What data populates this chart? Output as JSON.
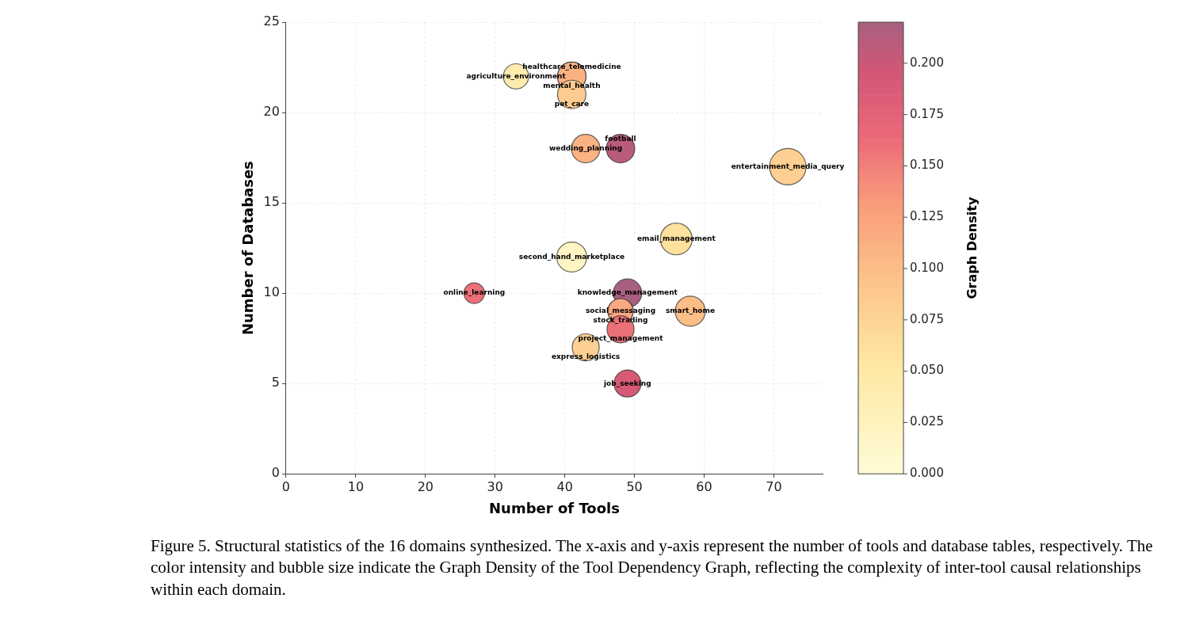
{
  "chart_data": {
    "type": "bubble",
    "xlabel": "Number of Tools",
    "ylabel": "Number of Databases",
    "clabel": "Graph Density",
    "xlim": [
      0,
      77
    ],
    "xticks": [
      0,
      10,
      20,
      30,
      40,
      50,
      60,
      70
    ],
    "ylim": [
      0,
      25
    ],
    "yticks": [
      0,
      5,
      10,
      15,
      20,
      25
    ],
    "clim": [
      0,
      0.22
    ],
    "cticks": [
      {
        "value": 0,
        "label": "0.000"
      },
      {
        "value": 0.025,
        "label": "0.025"
      },
      {
        "value": 0.05,
        "label": "0.050"
      },
      {
        "value": 0.075,
        "label": "0.075"
      },
      {
        "value": 0.1,
        "label": "0.100"
      },
      {
        "value": 0.125,
        "label": "0.125"
      },
      {
        "value": 0.15,
        "label": "0.150"
      },
      {
        "value": 0.175,
        "label": "0.175"
      },
      {
        "value": 0.2,
        "label": "0.200"
      }
    ],
    "grid": true,
    "x": [
      33,
      41,
      41,
      41,
      43,
      48,
      72,
      56,
      41,
      27,
      49,
      48,
      48,
      58,
      48,
      43,
      49
    ],
    "values": [
      22,
      22,
      22,
      21,
      18,
      18,
      17,
      13,
      12,
      10,
      10,
      9,
      9,
      9,
      8,
      7,
      5
    ],
    "sizes": [
      0.48,
      0.61,
      0.61,
      0.61,
      0.61,
      0.61,
      1,
      0.76,
      0.68,
      0.32,
      0.61,
      0.48,
      0.48,
      0.68,
      0.55,
      0.55,
      0.55
    ],
    "cvalues": [
      0.04,
      0.11,
      0.11,
      0.085,
      0.11,
      0.21,
      0.08,
      0.06,
      0.02,
      0.16,
      0.22,
      0.13,
      0.12,
      0.1,
      0.16,
      0.08,
      0.19
    ],
    "annotations": [
      {
        "text": "agriculture_environment",
        "x": 33,
        "y": 22
      },
      {
        "text": "healthcare_telemedicine",
        "x": 41,
        "y": 22
      },
      {
        "text": "mental_health",
        "x": 41,
        "y": 22
      },
      {
        "text": "pet_care",
        "x": 41,
        "y": 21
      },
      {
        "text": "wedding_planning",
        "x": 43,
        "y": 18
      },
      {
        "text": "football",
        "x": 48,
        "y": 18
      },
      {
        "text": "entertainment_media_query",
        "x": 72,
        "y": 17
      },
      {
        "text": "email_management",
        "x": 56,
        "y": 13
      },
      {
        "text": "second_hand_marketplace",
        "x": 41,
        "y": 12
      },
      {
        "text": "online_learning",
        "x": 27,
        "y": 10
      },
      {
        "text": "knowledge_management",
        "x": 49,
        "y": 10
      },
      {
        "text": "social_messaging",
        "x": 48,
        "y": 9
      },
      {
        "text": "stock_trading",
        "x": 48,
        "y": 9
      },
      {
        "text": "smart_home",
        "x": 58,
        "y": 9
      },
      {
        "text": "project_management",
        "x": 48,
        "y": 8
      },
      {
        "text": "express_logistics",
        "x": 43,
        "y": 7
      },
      {
        "text": "job_seeking",
        "x": 49,
        "y": 5
      },
      "Figure 5. Structural statistics of the 16 domains synthesized. The x-axis and y-axis represent the number of tools and database tables, respectively. The color intensity and bubble size indicate the Graph Density of the Tool Dependency Graph, reflecting the complexity of inter-tool causal relationships within each domain."
    ]
  }
}
